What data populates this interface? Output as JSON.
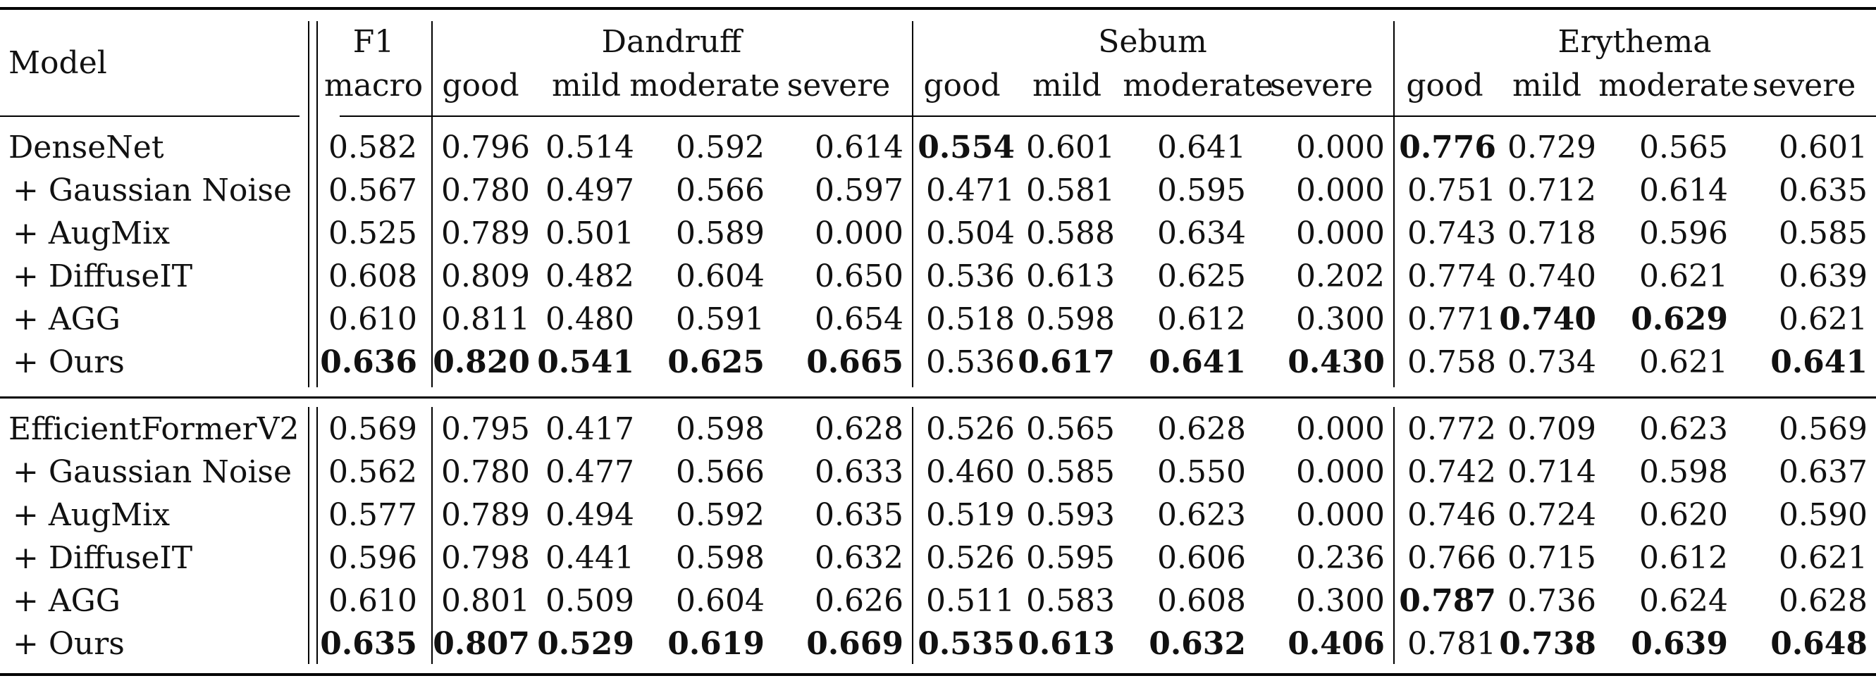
{
  "header": {
    "model_label": "Model",
    "f1_label": "F1",
    "macro_label": "macro",
    "groups": [
      "Dandruff",
      "Sebum",
      "Erythema"
    ],
    "sub_labels": [
      "good",
      "mild",
      "moderate",
      "severe"
    ]
  },
  "sections": [
    {
      "rows": [
        {
          "model": "DenseNet",
          "values": [
            "0.582",
            "0.796",
            "0.514",
            "0.592",
            "0.614",
            "0.554",
            "0.601",
            "0.641",
            "0.000",
            "0.776",
            "0.729",
            "0.565",
            "0.601"
          ],
          "bold": [
            5,
            9
          ]
        },
        {
          "model": "+ Gaussian Noise",
          "values": [
            "0.567",
            "0.780",
            "0.497",
            "0.566",
            "0.597",
            "0.471",
            "0.581",
            "0.595",
            "0.000",
            "0.751",
            "0.712",
            "0.614",
            "0.635"
          ],
          "bold": []
        },
        {
          "model": "+ AugMix",
          "values": [
            "0.525",
            "0.789",
            "0.501",
            "0.589",
            "0.000",
            "0.504",
            "0.588",
            "0.634",
            "0.000",
            "0.743",
            "0.718",
            "0.596",
            "0.585"
          ],
          "bold": []
        },
        {
          "model": "+ DiffuseIT",
          "values": [
            "0.608",
            "0.809",
            "0.482",
            "0.604",
            "0.650",
            "0.536",
            "0.613",
            "0.625",
            "0.202",
            "0.774",
            "0.740",
            "0.621",
            "0.639"
          ],
          "bold": []
        },
        {
          "model": "+ AGG",
          "values": [
            "0.610",
            "0.811",
            "0.480",
            "0.591",
            "0.654",
            "0.518",
            "0.598",
            "0.612",
            "0.300",
            "0.771",
            "0.740",
            "0.629",
            "0.621"
          ],
          "bold": [
            10,
            11
          ]
        },
        {
          "model": "+ Ours",
          "values": [
            "0.636",
            "0.820",
            "0.541",
            "0.625",
            "0.665",
            "0.536",
            "0.617",
            "0.641",
            "0.430",
            "0.758",
            "0.734",
            "0.621",
            "0.641"
          ],
          "bold": [
            0,
            1,
            2,
            3,
            4,
            6,
            7,
            8,
            12
          ]
        }
      ]
    },
    {
      "rows": [
        {
          "model": "EfficientFormerV2",
          "values": [
            "0.569",
            "0.795",
            "0.417",
            "0.598",
            "0.628",
            "0.526",
            "0.565",
            "0.628",
            "0.000",
            "0.772",
            "0.709",
            "0.623",
            "0.569"
          ],
          "bold": []
        },
        {
          "model": "+ Gaussian Noise",
          "values": [
            "0.562",
            "0.780",
            "0.477",
            "0.566",
            "0.633",
            "0.460",
            "0.585",
            "0.550",
            "0.000",
            "0.742",
            "0.714",
            "0.598",
            "0.637"
          ],
          "bold": []
        },
        {
          "model": "+ AugMix",
          "values": [
            "0.577",
            "0.789",
            "0.494",
            "0.592",
            "0.635",
            "0.519",
            "0.593",
            "0.623",
            "0.000",
            "0.746",
            "0.724",
            "0.620",
            "0.590"
          ],
          "bold": []
        },
        {
          "model": "+ DiffuseIT",
          "values": [
            "0.596",
            "0.798",
            "0.441",
            "0.598",
            "0.632",
            "0.526",
            "0.595",
            "0.606",
            "0.236",
            "0.766",
            "0.715",
            "0.612",
            "0.621"
          ],
          "bold": []
        },
        {
          "model": "+ AGG",
          "values": [
            "0.610",
            "0.801",
            "0.509",
            "0.604",
            "0.626",
            "0.511",
            "0.583",
            "0.608",
            "0.300",
            "0.787",
            "0.736",
            "0.624",
            "0.628"
          ],
          "bold": [
            9
          ]
        },
        {
          "model": "+ Ours",
          "values": [
            "0.635",
            "0.807",
            "0.529",
            "0.619",
            "0.669",
            "0.535",
            "0.613",
            "0.632",
            "0.406",
            "0.781",
            "0.738",
            "0.639",
            "0.648"
          ],
          "bold": [
            0,
            1,
            2,
            3,
            4,
            5,
            6,
            7,
            8,
            10,
            11,
            12
          ]
        }
      ]
    }
  ]
}
